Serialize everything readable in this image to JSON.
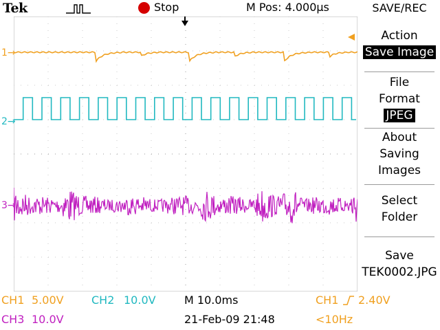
{
  "header": {
    "brand": "Tek",
    "acq_status": "Stop",
    "acq_status_color": "#d50000",
    "horizontal_position": "M Pos: 4.000µs"
  },
  "menu": {
    "title": "SAVE/REC",
    "items": [
      {
        "line1": "Action",
        "value": "Save Image"
      },
      {
        "line1": "File",
        "line2": "Format",
        "value": "JPEG"
      },
      {
        "line1": "About",
        "line2": "Saving",
        "line3": "Images"
      },
      {
        "line1": "Select",
        "line2": "Folder"
      },
      {
        "line1": "Save",
        "line2": "TEK0002.JPG"
      }
    ]
  },
  "channels": {
    "ch1": {
      "marker": "1",
      "color": "#f0a020"
    },
    "ch2": {
      "marker": "2",
      "color": "#20b8c0"
    },
    "ch3": {
      "marker": "3",
      "color": "#c020c0"
    }
  },
  "status": {
    "ch1_label": "CH1",
    "ch1_scale": "5.00V",
    "ch2_label": "CH2",
    "ch2_scale": "10.0V",
    "ch3_label": "CH3",
    "ch3_scale": "10.0V",
    "timebase": "M 10.0ms",
    "datetime": "21-Feb-09 21:48",
    "trigger_source": "CH1",
    "trigger_level": "2.40V",
    "trigger_freq": "<10Hz"
  }
}
